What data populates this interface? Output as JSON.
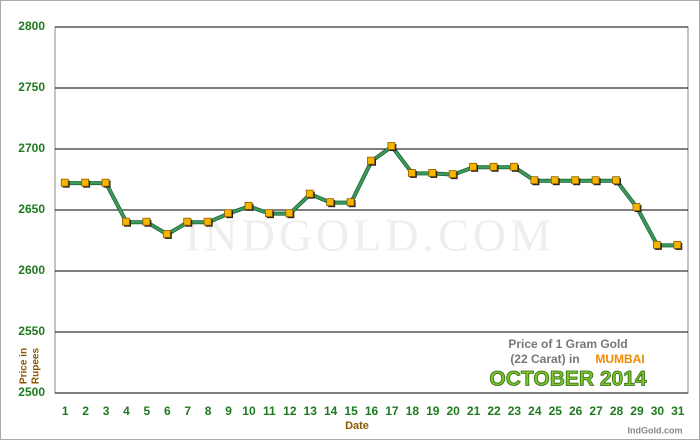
{
  "chart_data": {
    "type": "line",
    "watermark": "INDGOLD.COM",
    "x_label": "Date",
    "y_label_lines": [
      "Price in",
      "Rupees"
    ],
    "caption": {
      "line1": "Price of 1 Gram Gold",
      "line2": "(22 Carat) in",
      "city": "MUMBAI",
      "period": "OCTOBER 2014",
      "site": "IndGold.com"
    },
    "categories": [
      "1",
      "2",
      "3",
      "4",
      "5",
      "6",
      "7",
      "8",
      "9",
      "10",
      "11",
      "12",
      "13",
      "14",
      "15",
      "16",
      "17",
      "18",
      "19",
      "20",
      "21",
      "22",
      "23",
      "24",
      "25",
      "26",
      "27",
      "28",
      "29",
      "30",
      "31"
    ],
    "values": [
      2672,
      2672,
      2672,
      2640,
      2640,
      2630,
      2640,
      2640,
      2647,
      2653,
      2647,
      2647,
      2663,
      2656,
      2656,
      2690,
      2702,
      2680,
      2680,
      2679,
      2685,
      2685,
      2685,
      2674,
      2674,
      2674,
      2674,
      2674,
      2652,
      2621,
      2621
    ],
    "color": "#3a9a5a",
    "marker_color": "#f7b500",
    "ylim": [
      2500,
      2800
    ],
    "yticks": [
      2500,
      2550,
      2600,
      2650,
      2700,
      2750,
      2800
    ],
    "grid": true
  }
}
